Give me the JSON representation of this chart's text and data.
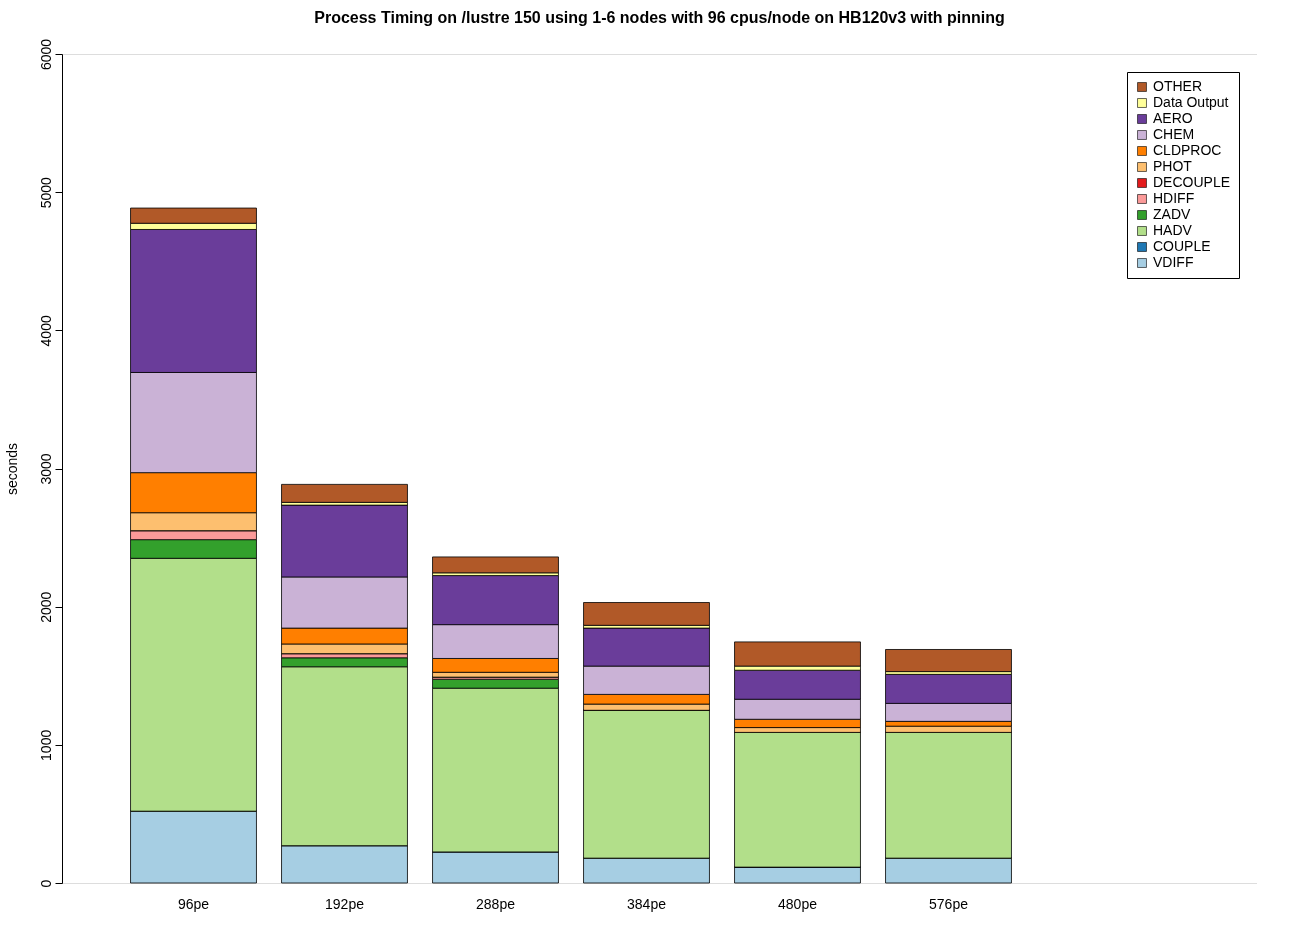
{
  "chart_data": {
    "type": "bar",
    "title": "Process Timing on /lustre 150 using 1-6 nodes with 96 cpus/node on HB120v3 with pinning",
    "ylabel": "seconds",
    "categories": [
      "96pe",
      "192pe",
      "288pe",
      "384pe",
      "480pe",
      "576pe"
    ],
    "stacked": true,
    "ylim": [
      0,
      6000
    ],
    "yticks": [
      0,
      1000,
      2000,
      3000,
      4000,
      5000,
      6000
    ],
    "grid": false,
    "legend": "top right",
    "series": [
      {
        "name": "VDIFF",
        "color": "#a6cee3",
        "values": [
          520,
          270,
          225,
          180,
          115,
          180
        ]
      },
      {
        "name": "COUPLE",
        "color": "#1f78b4",
        "values": [
          0,
          0,
          0,
          0,
          0,
          0
        ]
      },
      {
        "name": "HADV",
        "color": "#b2df8a",
        "values": [
          1830,
          1295,
          1185,
          1070,
          975,
          910
        ]
      },
      {
        "name": "ZADV",
        "color": "#33a02c",
        "values": [
          135,
          65,
          65,
          0,
          0,
          0
        ]
      },
      {
        "name": "HDIFF",
        "color": "#fb9a99",
        "values": [
          65,
          30,
          15,
          0,
          0,
          0
        ]
      },
      {
        "name": "DECOUPLE",
        "color": "#e31a1c",
        "values": [
          0,
          0,
          0,
          0,
          0,
          0
        ]
      },
      {
        "name": "PHOT",
        "color": "#fdbf6f",
        "values": [
          130,
          70,
          35,
          45,
          35,
          45
        ]
      },
      {
        "name": "CLDPROC",
        "color": "#ff7f00",
        "values": [
          290,
          115,
          100,
          70,
          60,
          35
        ]
      },
      {
        "name": "CHEM",
        "color": "#cab2d6",
        "values": [
          725,
          370,
          245,
          205,
          145,
          130
        ]
      },
      {
        "name": "AERO",
        "color": "#6a3d9a",
        "values": [
          1035,
          520,
          355,
          275,
          210,
          210
        ]
      },
      {
        "name": "Data Output",
        "color": "#ffff99",
        "values": [
          45,
          20,
          20,
          20,
          30,
          20
        ]
      },
      {
        "name": "OTHER",
        "color": "#b15928",
        "values": [
          110,
          130,
          115,
          165,
          175,
          160
        ]
      }
    ]
  }
}
